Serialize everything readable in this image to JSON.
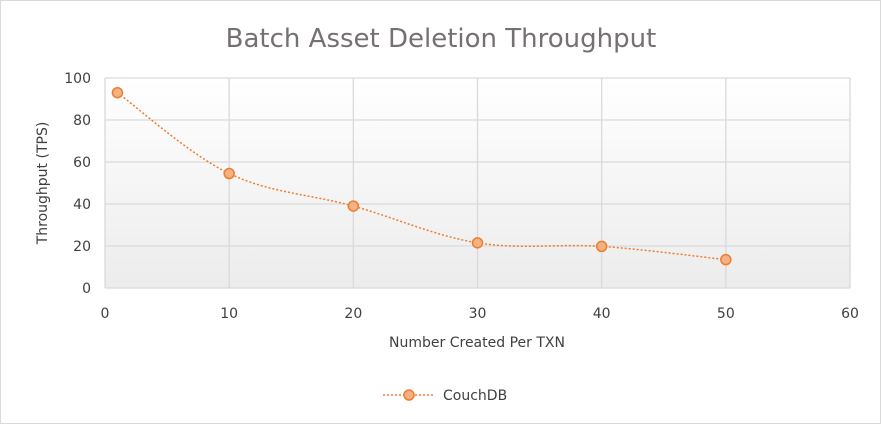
{
  "chart_data": {
    "type": "scatter",
    "title": "Batch Asset Deletion Throughput",
    "xlabel": "Number Created Per TXN",
    "ylabel": "Throughput (TPS)",
    "xlim": [
      0,
      60
    ],
    "ylim": [
      0,
      100
    ],
    "xticks": [
      0,
      10,
      20,
      30,
      40,
      50,
      60
    ],
    "yticks": [
      0,
      20,
      40,
      60,
      80,
      100
    ],
    "grid": true,
    "legend_position": "bottom",
    "series": [
      {
        "name": "CouchDB",
        "color": "#ed7d31",
        "marker_fill": "#f4b183",
        "line_style": "dotted-smooth",
        "x": [
          1,
          10,
          20,
          30,
          40,
          50
        ],
        "y": [
          93,
          54.5,
          39,
          21.5,
          19.8,
          13.5
        ]
      }
    ]
  }
}
